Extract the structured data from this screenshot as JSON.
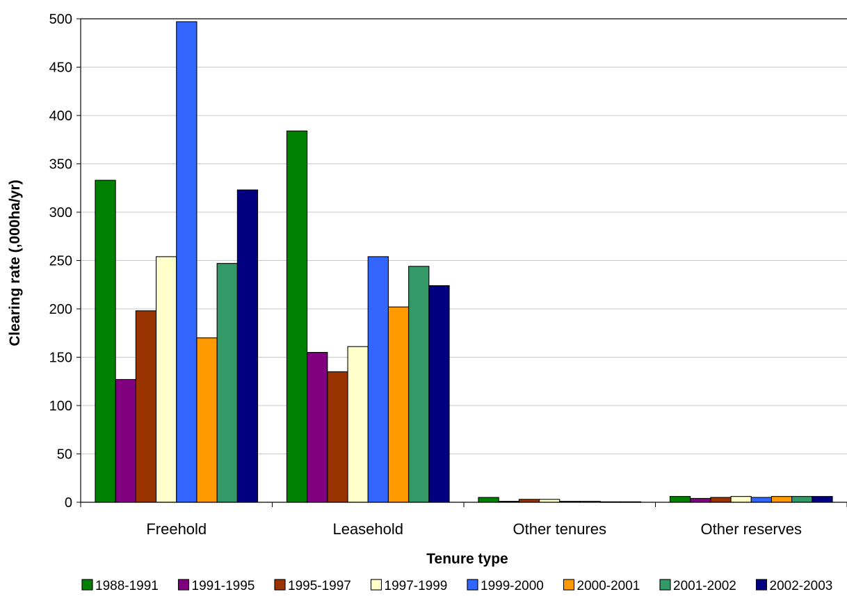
{
  "chart_data": {
    "type": "bar",
    "xlabel": "Tenure type",
    "ylabel": "Clearing rate (,000ha/yr)",
    "ylim": [
      0,
      500
    ],
    "yticks": [
      0,
      50,
      100,
      150,
      200,
      250,
      300,
      350,
      400,
      450,
      500
    ],
    "grid": true,
    "legend_position": "bottom",
    "categories": [
      "Freehold",
      "Leasehold",
      "Other tenures",
      "Other reserves"
    ],
    "series": [
      {
        "name": "1988-1991",
        "color": "#008000",
        "values": [
          333,
          384,
          5,
          6
        ]
      },
      {
        "name": "1991-1995",
        "color": "#800080",
        "values": [
          127,
          155,
          1,
          4
        ]
      },
      {
        "name": "1995-1997",
        "color": "#993300",
        "values": [
          198,
          135,
          3,
          5
        ]
      },
      {
        "name": "1997-1999",
        "color": "#ffffcc",
        "values": [
          254,
          161,
          3,
          6
        ]
      },
      {
        "name": "1999-2000",
        "color": "#3366ff",
        "values": [
          497,
          254,
          1,
          5
        ]
      },
      {
        "name": "2000-2001",
        "color": "#ff9900",
        "values": [
          170,
          202,
          1,
          6
        ]
      },
      {
        "name": "2001-2002",
        "color": "#339966",
        "values": [
          247,
          244,
          0.5,
          6
        ]
      },
      {
        "name": "2002-2003",
        "color": "#000080",
        "values": [
          323,
          224,
          0.5,
          6
        ]
      }
    ]
  }
}
